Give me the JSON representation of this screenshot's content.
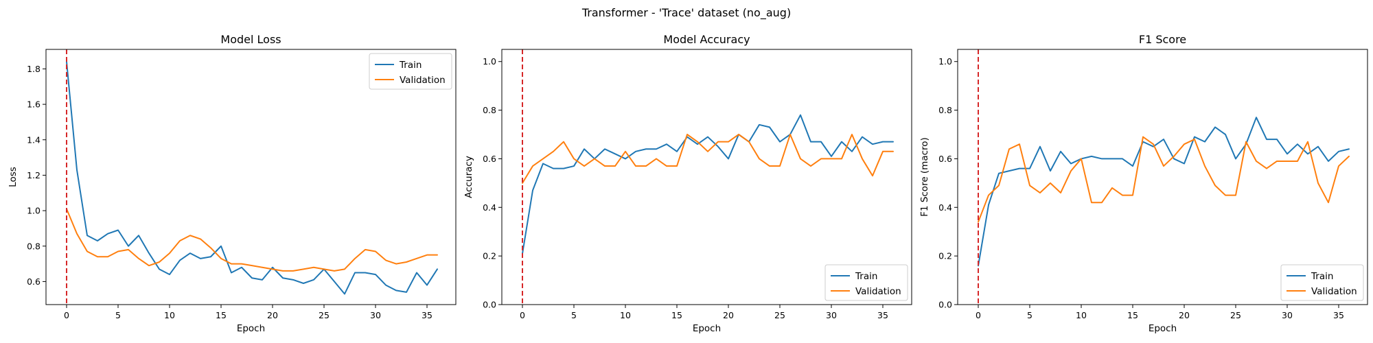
{
  "figure": {
    "suptitle": "Transformer - 'Trace' dataset (no_aug)"
  },
  "style": {
    "train_color": "#1f77b4",
    "validation_color": "#ff7f0e",
    "marker_color": "#d62728"
  },
  "chart_data": [
    {
      "type": "line",
      "title": "Model Loss",
      "xlabel": "Epoch",
      "ylabel": "Loss",
      "xlim": [
        -2,
        37.8
      ],
      "ylim": [
        0.47,
        1.91
      ],
      "xticks": [
        0,
        5,
        10,
        15,
        20,
        25,
        30,
        35
      ],
      "yticks": [
        0.6,
        0.8,
        1.0,
        1.2,
        1.4,
        1.6,
        1.8
      ],
      "ytick_labels": [
        "0.6",
        "0.8",
        "1.0",
        "1.2",
        "1.4",
        "1.6",
        "1.8"
      ],
      "vline_x": 0,
      "legend": "top-right",
      "grid": false,
      "x": [
        0,
        1,
        2,
        3,
        4,
        5,
        6,
        7,
        8,
        9,
        10,
        11,
        12,
        13,
        14,
        15,
        16,
        17,
        18,
        19,
        20,
        21,
        22,
        23,
        24,
        25,
        26,
        27,
        28,
        29,
        30,
        31,
        32,
        33,
        34,
        35,
        36
      ],
      "series": [
        {
          "name": "Train",
          "values": [
            1.84,
            1.23,
            0.86,
            0.83,
            0.87,
            0.89,
            0.8,
            0.86,
            0.76,
            0.67,
            0.64,
            0.72,
            0.76,
            0.73,
            0.74,
            0.8,
            0.65,
            0.68,
            0.62,
            0.61,
            0.68,
            0.62,
            0.61,
            0.59,
            0.61,
            0.67,
            0.6,
            0.53,
            0.65,
            0.65,
            0.64,
            0.58,
            0.55,
            0.54,
            0.65,
            0.58,
            0.67
          ]
        },
        {
          "name": "Validation",
          "values": [
            1.01,
            0.87,
            0.77,
            0.74,
            0.74,
            0.77,
            0.78,
            0.73,
            0.69,
            0.71,
            0.76,
            0.83,
            0.86,
            0.84,
            0.79,
            0.73,
            0.7,
            0.7,
            0.69,
            0.68,
            0.67,
            0.66,
            0.66,
            0.67,
            0.68,
            0.67,
            0.66,
            0.67,
            0.73,
            0.78,
            0.77,
            0.72,
            0.7,
            0.71,
            0.73,
            0.75,
            0.75
          ]
        }
      ]
    },
    {
      "type": "line",
      "title": "Model Accuracy",
      "xlabel": "Epoch",
      "ylabel": "Accuracy",
      "xlim": [
        -2,
        37.8
      ],
      "ylim": [
        0,
        1.05
      ],
      "xticks": [
        0,
        5,
        10,
        15,
        20,
        25,
        30,
        35
      ],
      "yticks": [
        0,
        0.2,
        0.4,
        0.6,
        0.8,
        1.0
      ],
      "ytick_labels": [
        "0.0",
        "0.2",
        "0.4",
        "0.6",
        "0.8",
        "1.0"
      ],
      "vline_x": 0,
      "legend": "bottom-right",
      "grid": false,
      "x": [
        0,
        1,
        2,
        3,
        4,
        5,
        6,
        7,
        8,
        9,
        10,
        11,
        12,
        13,
        14,
        15,
        16,
        17,
        18,
        19,
        20,
        21,
        22,
        23,
        24,
        25,
        26,
        27,
        28,
        29,
        30,
        31,
        32,
        33,
        34,
        35,
        36
      ],
      "series": [
        {
          "name": "Train",
          "values": [
            0.21,
            0.47,
            0.58,
            0.56,
            0.56,
            0.57,
            0.64,
            0.6,
            0.64,
            0.62,
            0.6,
            0.63,
            0.64,
            0.64,
            0.66,
            0.63,
            0.69,
            0.66,
            0.69,
            0.65,
            0.6,
            0.7,
            0.67,
            0.74,
            0.73,
            0.67,
            0.7,
            0.78,
            0.67,
            0.67,
            0.61,
            0.67,
            0.63,
            0.69,
            0.66,
            0.67,
            0.67
          ]
        },
        {
          "name": "Validation",
          "values": [
            0.5,
            0.57,
            0.6,
            0.63,
            0.67,
            0.6,
            0.57,
            0.6,
            0.57,
            0.57,
            0.63,
            0.57,
            0.57,
            0.6,
            0.57,
            0.57,
            0.7,
            0.67,
            0.63,
            0.67,
            0.67,
            0.7,
            0.67,
            0.6,
            0.57,
            0.57,
            0.7,
            0.6,
            0.57,
            0.6,
            0.6,
            0.6,
            0.7,
            0.6,
            0.53,
            0.63,
            0.63
          ]
        }
      ]
    },
    {
      "type": "line",
      "title": "F1 Score",
      "xlabel": "Epoch",
      "ylabel": "F1 Score (macro)",
      "xlim": [
        -2,
        37.8
      ],
      "ylim": [
        0,
        1.05
      ],
      "xticks": [
        0,
        5,
        10,
        15,
        20,
        25,
        30,
        35
      ],
      "yticks": [
        0,
        0.2,
        0.4,
        0.6,
        0.8,
        1.0
      ],
      "ytick_labels": [
        "0.0",
        "0.2",
        "0.4",
        "0.6",
        "0.8",
        "1.0"
      ],
      "vline_x": 0,
      "legend": "bottom-right",
      "grid": false,
      "x": [
        0,
        1,
        2,
        3,
        4,
        5,
        6,
        7,
        8,
        9,
        10,
        11,
        12,
        13,
        14,
        15,
        16,
        17,
        18,
        19,
        20,
        21,
        22,
        23,
        24,
        25,
        26,
        27,
        28,
        29,
        30,
        31,
        32,
        33,
        34,
        35,
        36
      ],
      "series": [
        {
          "name": "Train",
          "values": [
            0.16,
            0.41,
            0.54,
            0.55,
            0.56,
            0.56,
            0.65,
            0.55,
            0.63,
            0.58,
            0.6,
            0.61,
            0.6,
            0.6,
            0.6,
            0.57,
            0.67,
            0.65,
            0.68,
            0.6,
            0.58,
            0.69,
            0.67,
            0.73,
            0.7,
            0.6,
            0.66,
            0.77,
            0.68,
            0.68,
            0.62,
            0.66,
            0.62,
            0.65,
            0.59,
            0.63,
            0.64
          ]
        },
        {
          "name": "Validation",
          "values": [
            0.34,
            0.45,
            0.49,
            0.64,
            0.66,
            0.49,
            0.46,
            0.5,
            0.46,
            0.55,
            0.6,
            0.42,
            0.42,
            0.48,
            0.45,
            0.45,
            0.69,
            0.66,
            0.57,
            0.61,
            0.66,
            0.68,
            0.57,
            0.49,
            0.45,
            0.45,
            0.67,
            0.59,
            0.56,
            0.59,
            0.59,
            0.59,
            0.67,
            0.5,
            0.42,
            0.57,
            0.61
          ]
        }
      ]
    }
  ]
}
